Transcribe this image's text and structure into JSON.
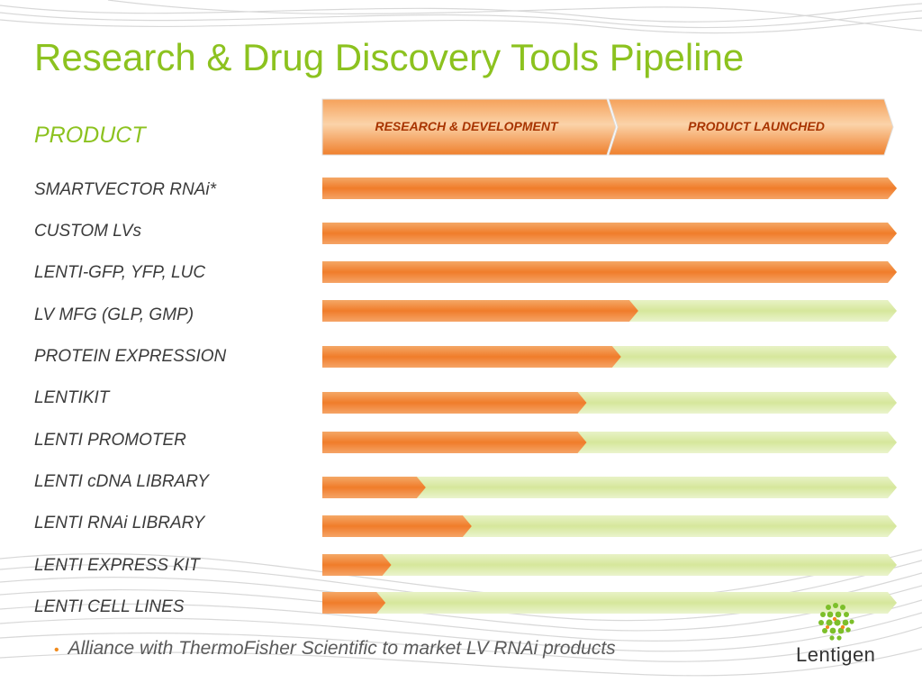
{
  "title": "Research & Drug Discovery Tools Pipeline",
  "product_heading": "PRODUCT",
  "phases": {
    "rd_label": "RESEARCH & DEVELOPMENT",
    "launched_label": "PRODUCT  LAUNCHED"
  },
  "footer_note": "Alliance with ThermoFisher Scientific to market LV RNAi products",
  "logo": {
    "text": "Lentigen"
  },
  "colors": {
    "title": "#8cc21f",
    "rd_orange": "#f07c2a",
    "launch_green": "#dceaaa",
    "label_text": "#3b3b3b"
  },
  "chart_data": {
    "type": "bar",
    "orientation": "horizontal",
    "title": "Research & Drug Discovery Tools Pipeline",
    "category_heading": "PRODUCT",
    "stages": [
      "RESEARCH & DEVELOPMENT",
      "PRODUCT  LAUNCHED"
    ],
    "categories": [
      "SMARTVECTOR RNAi*",
      "CUSTOM LVs",
      "LENTI-GFP, YFP, LUC",
      "LV MFG (GLP, GMP)",
      "PROTEIN EXPRESSION",
      "LENTIKIT",
      "LENTI PROMOTER",
      "LENTI cDNA LIBRARY",
      "LENTI RNAi LIBRARY",
      "LENTI EXPRESS KIT",
      "LENTI CELL LINES"
    ],
    "progress": [
      1.0,
      1.0,
      1.0,
      0.55,
      0.52,
      0.46,
      0.46,
      0.18,
      0.26,
      0.12,
      0.11
    ],
    "xlim": [
      0,
      1
    ]
  }
}
